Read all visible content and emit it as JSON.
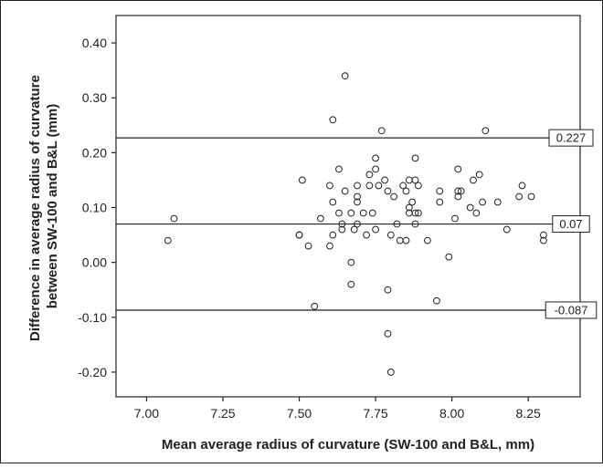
{
  "chart_data": {
    "type": "scatter",
    "title": "",
    "xlabel": "Mean average radius of curvature (SW-100 and B&L, mm)",
    "ylabel_lines": [
      "Difference in average radius of curvature",
      "between SW-100 and B&L (mm)"
    ],
    "xlim": [
      6.9,
      8.42
    ],
    "ylim": [
      -0.245,
      0.45
    ],
    "x_ticks": [
      7.0,
      7.25,
      7.5,
      7.75,
      8.0,
      8.25
    ],
    "x_tick_labels": [
      "7.00",
      "7.25",
      "7.50",
      "7.75",
      "8.00",
      "8.25"
    ],
    "y_ticks": [
      0.4,
      0.3,
      0.2,
      0.1,
      0.0,
      -0.1,
      -0.2
    ],
    "y_tick_labels": [
      "0.40",
      "0.30",
      "0.20",
      "0.10",
      "0.00",
      "-0.10",
      "-0.20"
    ],
    "reference_lines": [
      {
        "y": 0.227,
        "label": "0.227"
      },
      {
        "y": 0.07,
        "label": "0.07"
      },
      {
        "y": -0.087,
        "label": "-0.087"
      }
    ],
    "grid": false,
    "points": [
      {
        "x": 7.07,
        "y": 0.04
      },
      {
        "x": 7.09,
        "y": 0.08
      },
      {
        "x": 7.5,
        "y": 0.05
      },
      {
        "x": 7.5,
        "y": 0.05
      },
      {
        "x": 7.51,
        "y": 0.15
      },
      {
        "x": 7.53,
        "y": 0.03
      },
      {
        "x": 7.55,
        "y": -0.08
      },
      {
        "x": 7.57,
        "y": 0.08
      },
      {
        "x": 7.6,
        "y": 0.03
      },
      {
        "x": 7.61,
        "y": 0.11
      },
      {
        "x": 7.6,
        "y": 0.14
      },
      {
        "x": 7.61,
        "y": 0.26
      },
      {
        "x": 7.61,
        "y": 0.05
      },
      {
        "x": 7.63,
        "y": 0.17
      },
      {
        "x": 7.63,
        "y": 0.09
      },
      {
        "x": 7.64,
        "y": 0.07
      },
      {
        "x": 7.64,
        "y": 0.06
      },
      {
        "x": 7.65,
        "y": 0.34
      },
      {
        "x": 7.65,
        "y": 0.13
      },
      {
        "x": 7.67,
        "y": -0.04
      },
      {
        "x": 7.67,
        "y": 0.0
      },
      {
        "x": 7.67,
        "y": 0.09
      },
      {
        "x": 7.68,
        "y": 0.06
      },
      {
        "x": 7.69,
        "y": 0.07
      },
      {
        "x": 7.69,
        "y": 0.11
      },
      {
        "x": 7.69,
        "y": 0.12
      },
      {
        "x": 7.69,
        "y": 0.14
      },
      {
        "x": 7.71,
        "y": 0.09
      },
      {
        "x": 7.72,
        "y": 0.05
      },
      {
        "x": 7.73,
        "y": 0.14
      },
      {
        "x": 7.73,
        "y": 0.16
      },
      {
        "x": 7.74,
        "y": 0.09
      },
      {
        "x": 7.75,
        "y": 0.06
      },
      {
        "x": 7.75,
        "y": 0.17
      },
      {
        "x": 7.75,
        "y": 0.19
      },
      {
        "x": 7.76,
        "y": 0.14
      },
      {
        "x": 7.77,
        "y": 0.24
      },
      {
        "x": 7.78,
        "y": 0.15
      },
      {
        "x": 7.79,
        "y": 0.13
      },
      {
        "x": 7.79,
        "y": -0.05
      },
      {
        "x": 7.79,
        "y": -0.13
      },
      {
        "x": 7.8,
        "y": -0.2
      },
      {
        "x": 7.8,
        "y": 0.05
      },
      {
        "x": 7.81,
        "y": 0.12
      },
      {
        "x": 7.82,
        "y": 0.07
      },
      {
        "x": 7.83,
        "y": 0.04
      },
      {
        "x": 7.84,
        "y": 0.14
      },
      {
        "x": 7.85,
        "y": 0.13
      },
      {
        "x": 7.85,
        "y": 0.04
      },
      {
        "x": 7.86,
        "y": 0.1
      },
      {
        "x": 7.86,
        "y": 0.09
      },
      {
        "x": 7.86,
        "y": 0.15
      },
      {
        "x": 7.87,
        "y": 0.11
      },
      {
        "x": 7.88,
        "y": 0.15
      },
      {
        "x": 7.88,
        "y": 0.09
      },
      {
        "x": 7.88,
        "y": 0.07
      },
      {
        "x": 7.88,
        "y": 0.19
      },
      {
        "x": 7.89,
        "y": 0.09
      },
      {
        "x": 7.89,
        "y": 0.14
      },
      {
        "x": 7.92,
        "y": 0.04
      },
      {
        "x": 7.95,
        "y": -0.07
      },
      {
        "x": 7.96,
        "y": 0.13
      },
      {
        "x": 7.96,
        "y": 0.11
      },
      {
        "x": 7.99,
        "y": 0.01
      },
      {
        "x": 8.01,
        "y": 0.08
      },
      {
        "x": 8.02,
        "y": 0.17
      },
      {
        "x": 8.02,
        "y": 0.13
      },
      {
        "x": 8.02,
        "y": 0.12
      },
      {
        "x": 8.03,
        "y": 0.13
      },
      {
        "x": 8.06,
        "y": 0.1
      },
      {
        "x": 8.07,
        "y": 0.15
      },
      {
        "x": 8.08,
        "y": 0.09
      },
      {
        "x": 8.09,
        "y": 0.16
      },
      {
        "x": 8.1,
        "y": 0.11
      },
      {
        "x": 8.11,
        "y": 0.24
      },
      {
        "x": 8.15,
        "y": 0.11
      },
      {
        "x": 8.18,
        "y": 0.06
      },
      {
        "x": 8.22,
        "y": 0.12
      },
      {
        "x": 8.23,
        "y": 0.14
      },
      {
        "x": 8.26,
        "y": 0.12
      },
      {
        "x": 8.3,
        "y": 0.05
      },
      {
        "x": 8.3,
        "y": 0.04
      }
    ]
  }
}
